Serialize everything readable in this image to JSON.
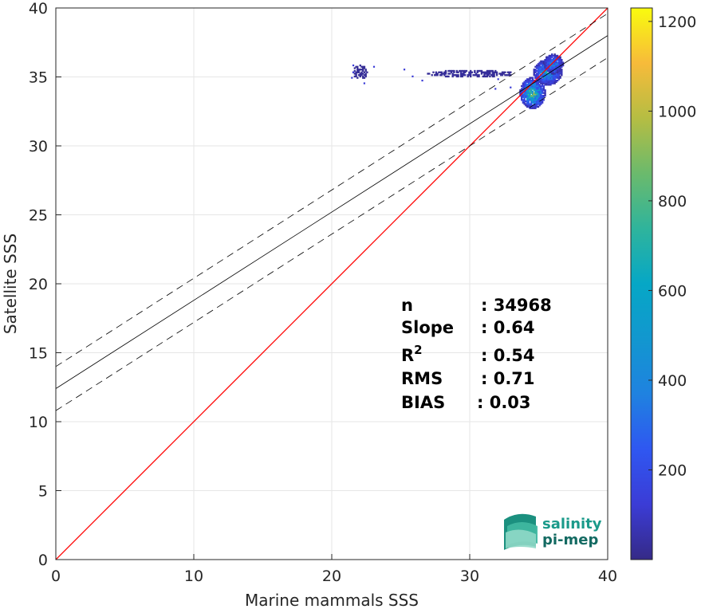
{
  "chart_data": {
    "type": "heatmap",
    "xlabel": "Marine mammals SSS",
    "ylabel": "Satellite SSS",
    "xlim": [
      0,
      40
    ],
    "ylim": [
      0,
      40
    ],
    "xticks": [
      0,
      10,
      20,
      30,
      40
    ],
    "yticks": [
      0,
      5,
      10,
      15,
      20,
      25,
      30,
      35,
      40
    ],
    "grid": true,
    "colorbar": {
      "range": [
        0,
        1230
      ],
      "ticks": [
        200,
        400,
        600,
        800,
        1000,
        1200
      ],
      "colormap": "parula"
    },
    "reference_line": {
      "name": "1:1",
      "slope": 1,
      "intercept": 0,
      "color": "#ff0000"
    },
    "fit_line": {
      "slope": 0.64,
      "intercept": 12.4,
      "color": "#000000"
    },
    "fit_bounds": [
      {
        "slope": 0.64,
        "intercept": 14.0,
        "style": "dashed"
      },
      {
        "slope": 0.64,
        "intercept": 10.8,
        "style": "dashed"
      }
    ],
    "stats": [
      {
        "label": "n",
        "value": ": 34968"
      },
      {
        "label": "Slope",
        "value": ": 0.64"
      },
      {
        "label": "R",
        "sup": "2",
        "value": ": 0.54"
      },
      {
        "label": "RMS",
        "value": ": 0.71"
      },
      {
        "label": "BIAS",
        "value": ": 0.03"
      }
    ],
    "density_clusters": [
      {
        "x": 34.5,
        "y": 33.8,
        "sx": 0.45,
        "sy": 0.55,
        "peak": 1230
      },
      {
        "x": 35.6,
        "y": 35.3,
        "sx": 0.5,
        "sy": 0.45,
        "peak": 900
      },
      {
        "x": 36.0,
        "y": 35.9,
        "sx": 0.35,
        "sy": 0.35,
        "peak": 700
      },
      {
        "x": 30.0,
        "y": 35.2,
        "sx": 2.5,
        "sy": 0.2,
        "peak": 60
      },
      {
        "x": 22.0,
        "y": 35.3,
        "sx": 0.4,
        "sy": 0.4,
        "peak": 40
      }
    ]
  },
  "logo": {
    "line1": "salinity",
    "line2": "pi-mep"
  },
  "colors": {
    "primary": "#ff0000",
    "fit": "#000000",
    "grid": "#e6e6e6",
    "axis": "#262626",
    "logo_teal": "#1a9a8a",
    "logo_dark": "#136a62"
  }
}
